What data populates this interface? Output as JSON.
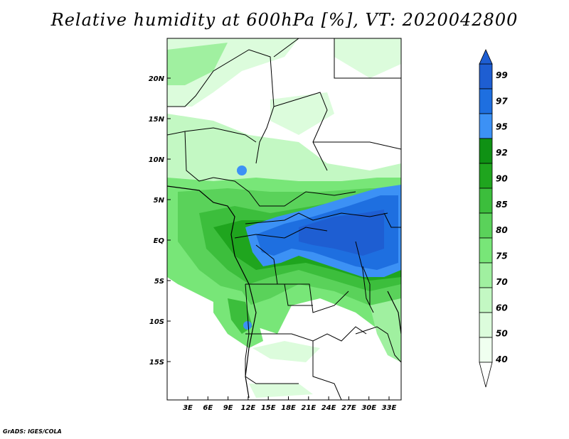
{
  "title": "Relative humidity at 600hPa [%], VT: 2020042800",
  "credit": "GrADS: IGES/COLA",
  "map": {
    "lat_labels": [
      "20N",
      "15N",
      "10N",
      "5N",
      "EQ",
      "5S",
      "10S",
      "15S"
    ],
    "lon_labels": [
      "3E",
      "6E",
      "9E",
      "12E",
      "15E",
      "18E",
      "21E",
      "24E",
      "27E",
      "30E",
      "33E"
    ]
  },
  "colorbar": {
    "labels": [
      "99",
      "97",
      "95",
      "92",
      "90",
      "85",
      "80",
      "75",
      "70",
      "60",
      "50",
      "40"
    ],
    "colors": [
      "#1e5ed2",
      "#1e6fe0",
      "#3c91f5",
      "#0f9114",
      "#1fa51e",
      "#3cbe3c",
      "#5ad25a",
      "#78e678",
      "#a0f0a0",
      "#c3f8c3",
      "#dcfcdc",
      "#f0fff0"
    ]
  }
}
